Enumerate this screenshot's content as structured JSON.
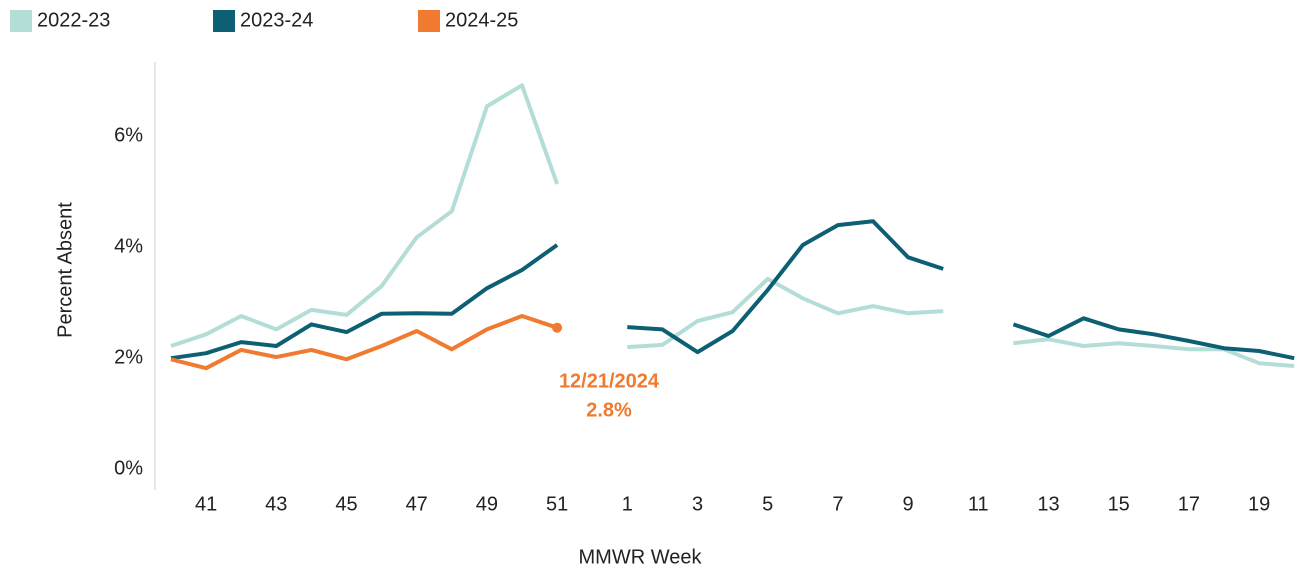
{
  "chart_data": {
    "type": "line",
    "x_label": "MMWR Week",
    "y_label": "Percent Absent",
    "categories": [
      null,
      "41",
      null,
      "43",
      null,
      "45",
      null,
      "47",
      null,
      "49",
      null,
      "51",
      null,
      "1",
      null,
      "3",
      null,
      "5",
      null,
      "7",
      null,
      "9",
      null,
      "11",
      null,
      "13",
      null,
      "15",
      null,
      "17",
      null,
      "19",
      null
    ],
    "series": [
      {
        "name": "2022-23",
        "color": "#b3ddd6",
        "values": [
          2.47,
          2.68,
          3.01,
          2.77,
          3.12,
          3.03,
          3.55,
          4.43,
          4.9,
          6.79,
          7.17,
          5.39,
          null,
          2.45,
          2.49,
          2.92,
          3.08,
          3.68,
          3.33,
          3.06,
          3.19,
          3.06,
          3.1,
          null,
          2.52,
          2.59,
          2.47,
          2.52,
          2.47,
          2.41,
          2.41,
          2.16,
          2.11
        ]
      },
      {
        "name": "2023-24",
        "color": "#0d5f73",
        "values": [
          2.25,
          2.34,
          2.54,
          2.47,
          2.86,
          2.72,
          3.05,
          3.06,
          3.05,
          3.51,
          3.84,
          4.29,
          null,
          2.81,
          2.77,
          2.36,
          2.74,
          3.48,
          4.29,
          4.65,
          4.72,
          4.07,
          3.86,
          null,
          2.86,
          2.65,
          2.97,
          2.77,
          2.68,
          2.56,
          2.43,
          2.38,
          2.25
        ]
      },
      {
        "name": "2024-25",
        "color": "#ef7a30",
        "end_marker": true,
        "values": [
          2.23,
          2.07,
          2.4,
          2.27,
          2.4,
          2.23,
          2.47,
          2.74,
          2.41,
          2.77,
          3.01,
          2.8,
          null,
          null,
          null,
          null,
          null,
          null,
          null,
          null,
          null,
          null,
          null,
          null,
          null,
          null,
          null,
          null,
          null,
          null,
          null,
          null,
          null
        ]
      }
    ],
    "annotation": {
      "date": "12/21/2024",
      "value_label": "2.8%",
      "color": "#ef7a30"
    },
    "ylim": [
      0,
      7.5
    ],
    "yticks": [
      {
        "value": 0,
        "label": "0%"
      },
      {
        "value": 2,
        "label": "2%"
      },
      {
        "value": 4,
        "label": "4%"
      },
      {
        "value": 6,
        "label": "6%"
      }
    ],
    "grid": false,
    "legend": "top-left"
  }
}
